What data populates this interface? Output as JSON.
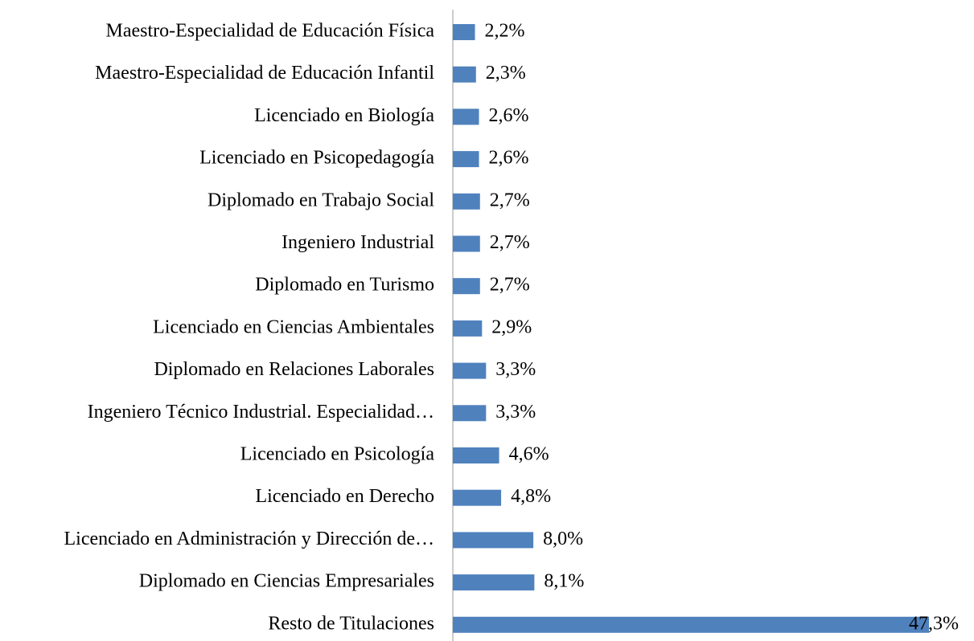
{
  "chart_data": {
    "type": "barh",
    "color": "#4f81bd",
    "categories": [
      "Maestro-Especialidad de Educación Física",
      "Maestro-Especialidad de Educación Infantil",
      "Licenciado en Biología",
      "Licenciado en Psicopedagogía",
      "Diplomado en Trabajo Social",
      "Ingeniero Industrial",
      "Diplomado en Turismo",
      "Licenciado en Ciencias Ambientales",
      "Diplomado en Relaciones Laborales",
      "Ingeniero Técnico Industrial. Especialidad…",
      "Licenciado en Psicología",
      "Licenciado en Derecho",
      "Licenciado en Administración y Dirección de…",
      "Diplomado en Ciencias Empresariales",
      "Resto de Titulaciones"
    ],
    "values": [
      2.2,
      2.3,
      2.6,
      2.6,
      2.7,
      2.7,
      2.7,
      2.9,
      3.3,
      3.3,
      4.6,
      4.8,
      8.0,
      8.1,
      47.3
    ],
    "value_labels": [
      "2,2%",
      "2,3%",
      "2,6%",
      "2,6%",
      "2,7%",
      "2,7%",
      "2,7%",
      "2,9%",
      "3,3%",
      "3,3%",
      "4,6%",
      "4,8%",
      "8,0%",
      "8,1%",
      "47,3%"
    ]
  }
}
